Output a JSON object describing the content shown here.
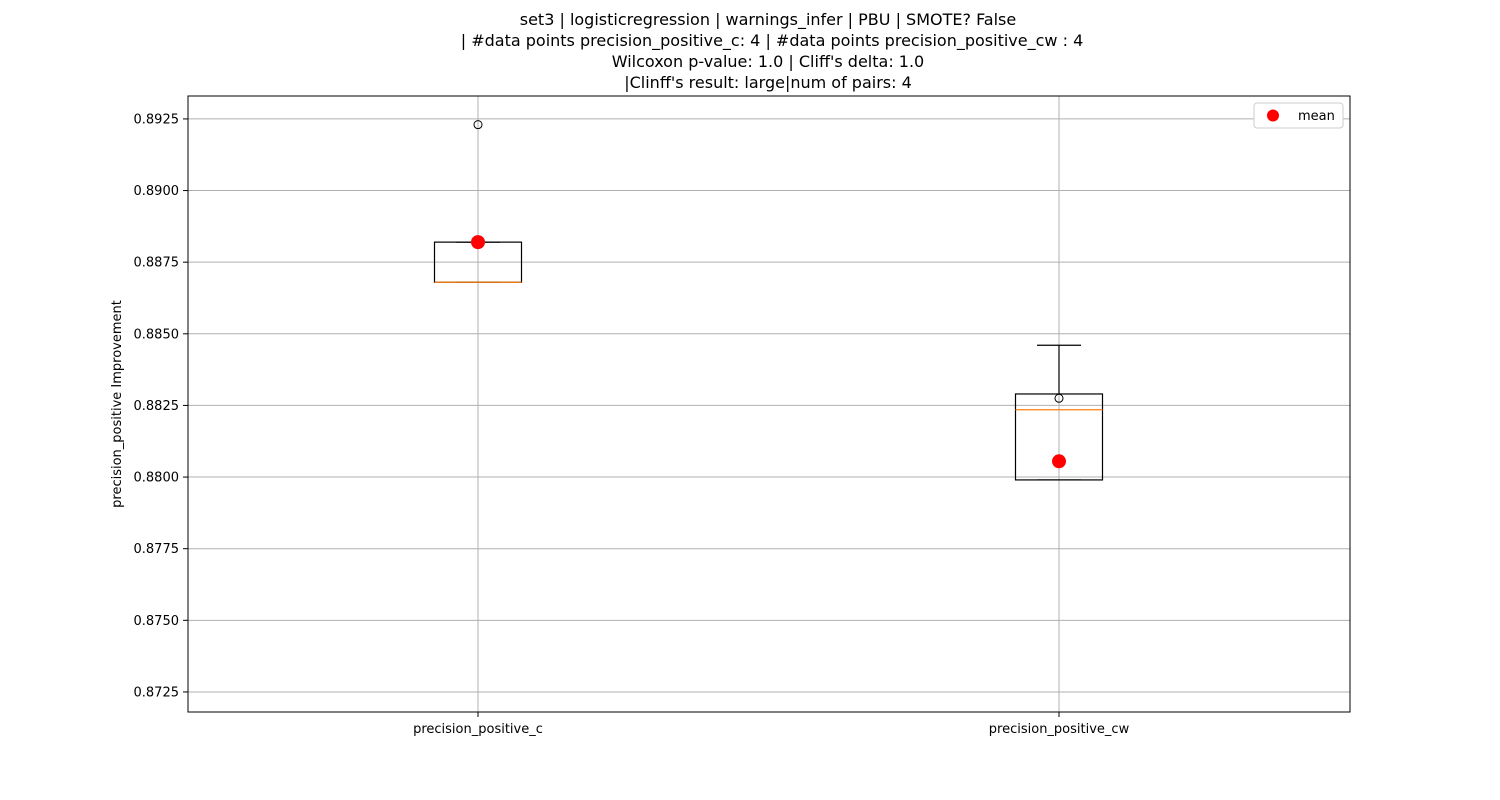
{
  "chart_data": {
    "type": "box",
    "title_lines": [
      "set3 | logisticregression | warnings_infer | PBU | SMOTE? False",
      "| #data points precision_positive_c: 4 | #data points precision_positive_cw : 4",
      "Wilcoxon p-value: 1.0 | Cliff's delta: 1.0",
      "|Clinff's result: large|num of pairs: 4"
    ],
    "ylabel": "precision_positive Improvement",
    "xlabel": "",
    "ylim": [
      0.8718,
      0.8933
    ],
    "yticks": [
      0.8725,
      0.875,
      0.8775,
      0.88,
      0.8825,
      0.885,
      0.8875,
      0.89,
      0.8925
    ],
    "ytick_labels": [
      "0.8725",
      "0.8750",
      "0.8775",
      "0.8800",
      "0.8825",
      "0.8850",
      "0.8875",
      "0.8900",
      "0.8925"
    ],
    "categories": [
      "precision_positive_c",
      "precision_positive_cw"
    ],
    "boxes": [
      {
        "whisker_low": 0.8868,
        "q1": 0.8868,
        "median": 0.8868,
        "q3": 0.8882,
        "whisker_high": 0.8882,
        "mean": 0.8882,
        "outliers": [
          0.8923
        ]
      },
      {
        "whisker_low": 0.8799,
        "q1": 0.8799,
        "median": 0.88235,
        "q3": 0.8829,
        "whisker_high": 0.8846,
        "mean": 0.88055,
        "outliers": [
          0.88275
        ]
      }
    ],
    "legend": {
      "label": "mean",
      "position": "top-right"
    },
    "grid": true,
    "colors": {
      "median": "#ff7f0e",
      "mean": "#ff0000",
      "box": "#000000",
      "grid": "#b0b0b0"
    }
  }
}
